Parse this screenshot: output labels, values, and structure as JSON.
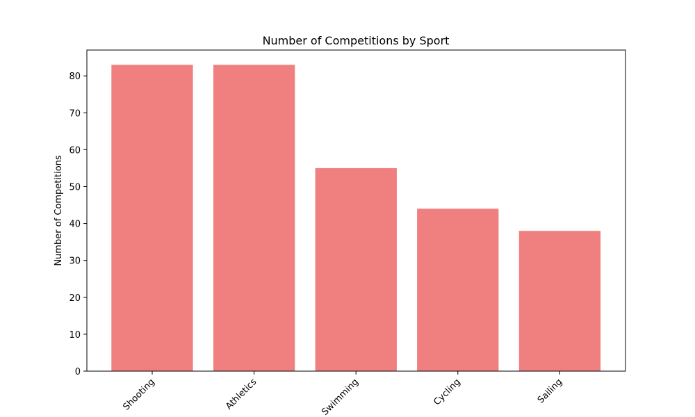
{
  "chart_data": {
    "type": "bar",
    "title": "Number of Competitions by Sport",
    "xlabel": "",
    "ylabel": "Number of Competitions",
    "categories": [
      "Shooting",
      "Athletics",
      "Swimming",
      "Cycling",
      "Sailing"
    ],
    "values": [
      83,
      83,
      55,
      44,
      38
    ],
    "ylim": [
      0,
      87
    ],
    "yticks": [
      0,
      10,
      20,
      30,
      40,
      50,
      60,
      70,
      80
    ],
    "grid": false,
    "colors": {
      "bar": "#f08080",
      "axis": "#000000"
    }
  }
}
